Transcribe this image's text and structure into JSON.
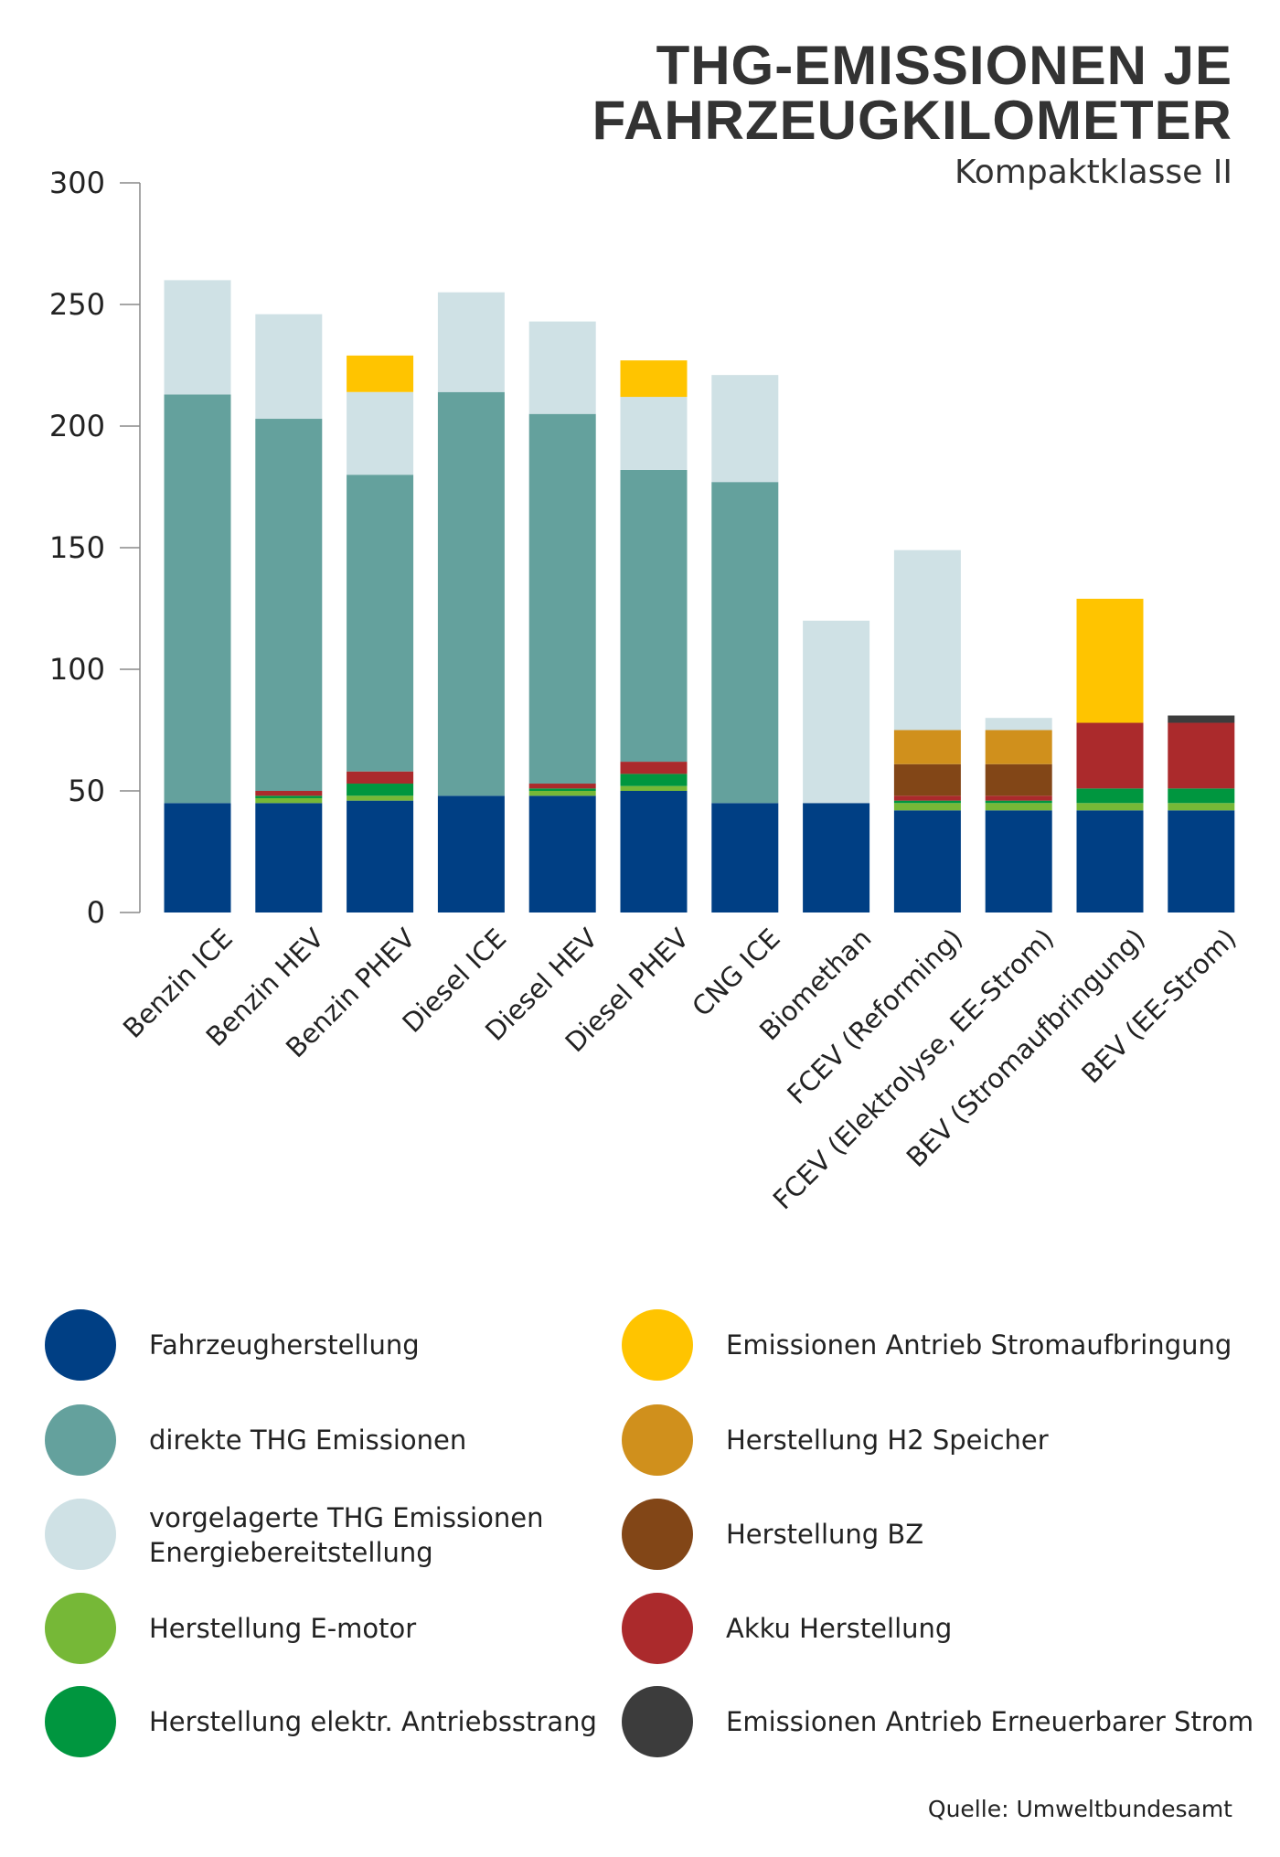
{
  "chart_data": {
    "type": "bar",
    "stacked": true,
    "title": "THG-EMISSIONEN JE FAHRZEUGKILOMETER",
    "title_lines": [
      "THG-EMISSIONEN JE",
      "FAHRZEUGKILOMETER"
    ],
    "subtitle": "Kompaktklasse II",
    "xlabel": "",
    "ylabel": "",
    "ylim": [
      0,
      300
    ],
    "yticks": [
      0,
      50,
      100,
      150,
      200,
      250,
      300
    ],
    "grid": false,
    "legend_position": "bottom",
    "categories": [
      "Benzin ICE",
      "Benzin HEV",
      "Benzin PHEV",
      "Diesel ICE",
      "Diesel HEV",
      "Diesel PHEV",
      "CNG ICE",
      "Biomethan",
      "FCEV (Reforming)",
      "FCEV (Elektrolyse, EE-Strom)",
      "BEV (Stromaufbringung)",
      "BEV (EE-Strom)"
    ],
    "series": [
      {
        "name": "Fahrzeugherstellung",
        "color": "#003f84",
        "values": [
          45,
          45,
          46,
          48,
          48,
          50,
          45,
          45,
          42,
          42,
          42,
          42
        ]
      },
      {
        "name": "direkte THG Emissionen",
        "color": "#64a19d",
        "values": [
          168,
          153,
          122,
          166,
          152,
          120,
          132,
          0,
          0,
          0,
          0,
          0
        ]
      },
      {
        "name": "vorgelagerte THG Emissionen Energiebereitstellung",
        "lines": [
          "vorgelagerte THG Emissionen",
          "Energiebereitstellung"
        ],
        "color": "#cfe1e5",
        "values": [
          47,
          43,
          34,
          41,
          38,
          30,
          44,
          75,
          74,
          5,
          0,
          0
        ]
      },
      {
        "name": "Herstellung E-motor",
        "color": "#76b837",
        "values": [
          0,
          2,
          2,
          0,
          2,
          2,
          0,
          0,
          3,
          3,
          3,
          3
        ]
      },
      {
        "name": "Herstellung elektr. Antriebsstrang",
        "color": "#00963f",
        "values": [
          0,
          1,
          5,
          0,
          1,
          5,
          0,
          0,
          1,
          1,
          6,
          6
        ]
      },
      {
        "name": "Emissionen Antrieb Stromaufbringung",
        "color": "#ffc400",
        "values": [
          0,
          0,
          15,
          0,
          0,
          15,
          0,
          0,
          0,
          0,
          51,
          0
        ]
      },
      {
        "name": "Herstellung H2 Speicher",
        "color": "#d0901c",
        "values": [
          0,
          0,
          0,
          0,
          0,
          0,
          0,
          0,
          14,
          14,
          0,
          0
        ]
      },
      {
        "name": "Herstellung BZ",
        "color": "#824617",
        "values": [
          0,
          0,
          0,
          0,
          0,
          0,
          0,
          0,
          13,
          13,
          0,
          0
        ]
      },
      {
        "name": "Akku Herstellung",
        "color": "#ab2a2c",
        "values": [
          0,
          2,
          5,
          0,
          2,
          5,
          0,
          0,
          2,
          2,
          27,
          27
        ]
      },
      {
        "name": "Emissionen Antrieb Erneuerbarer Strom",
        "color": "#3c3c3c",
        "values": [
          0,
          0,
          0,
          0,
          0,
          0,
          0,
          0,
          0,
          0,
          0,
          3
        ]
      }
    ],
    "source": "Quelle: Umweltbundesamt"
  }
}
